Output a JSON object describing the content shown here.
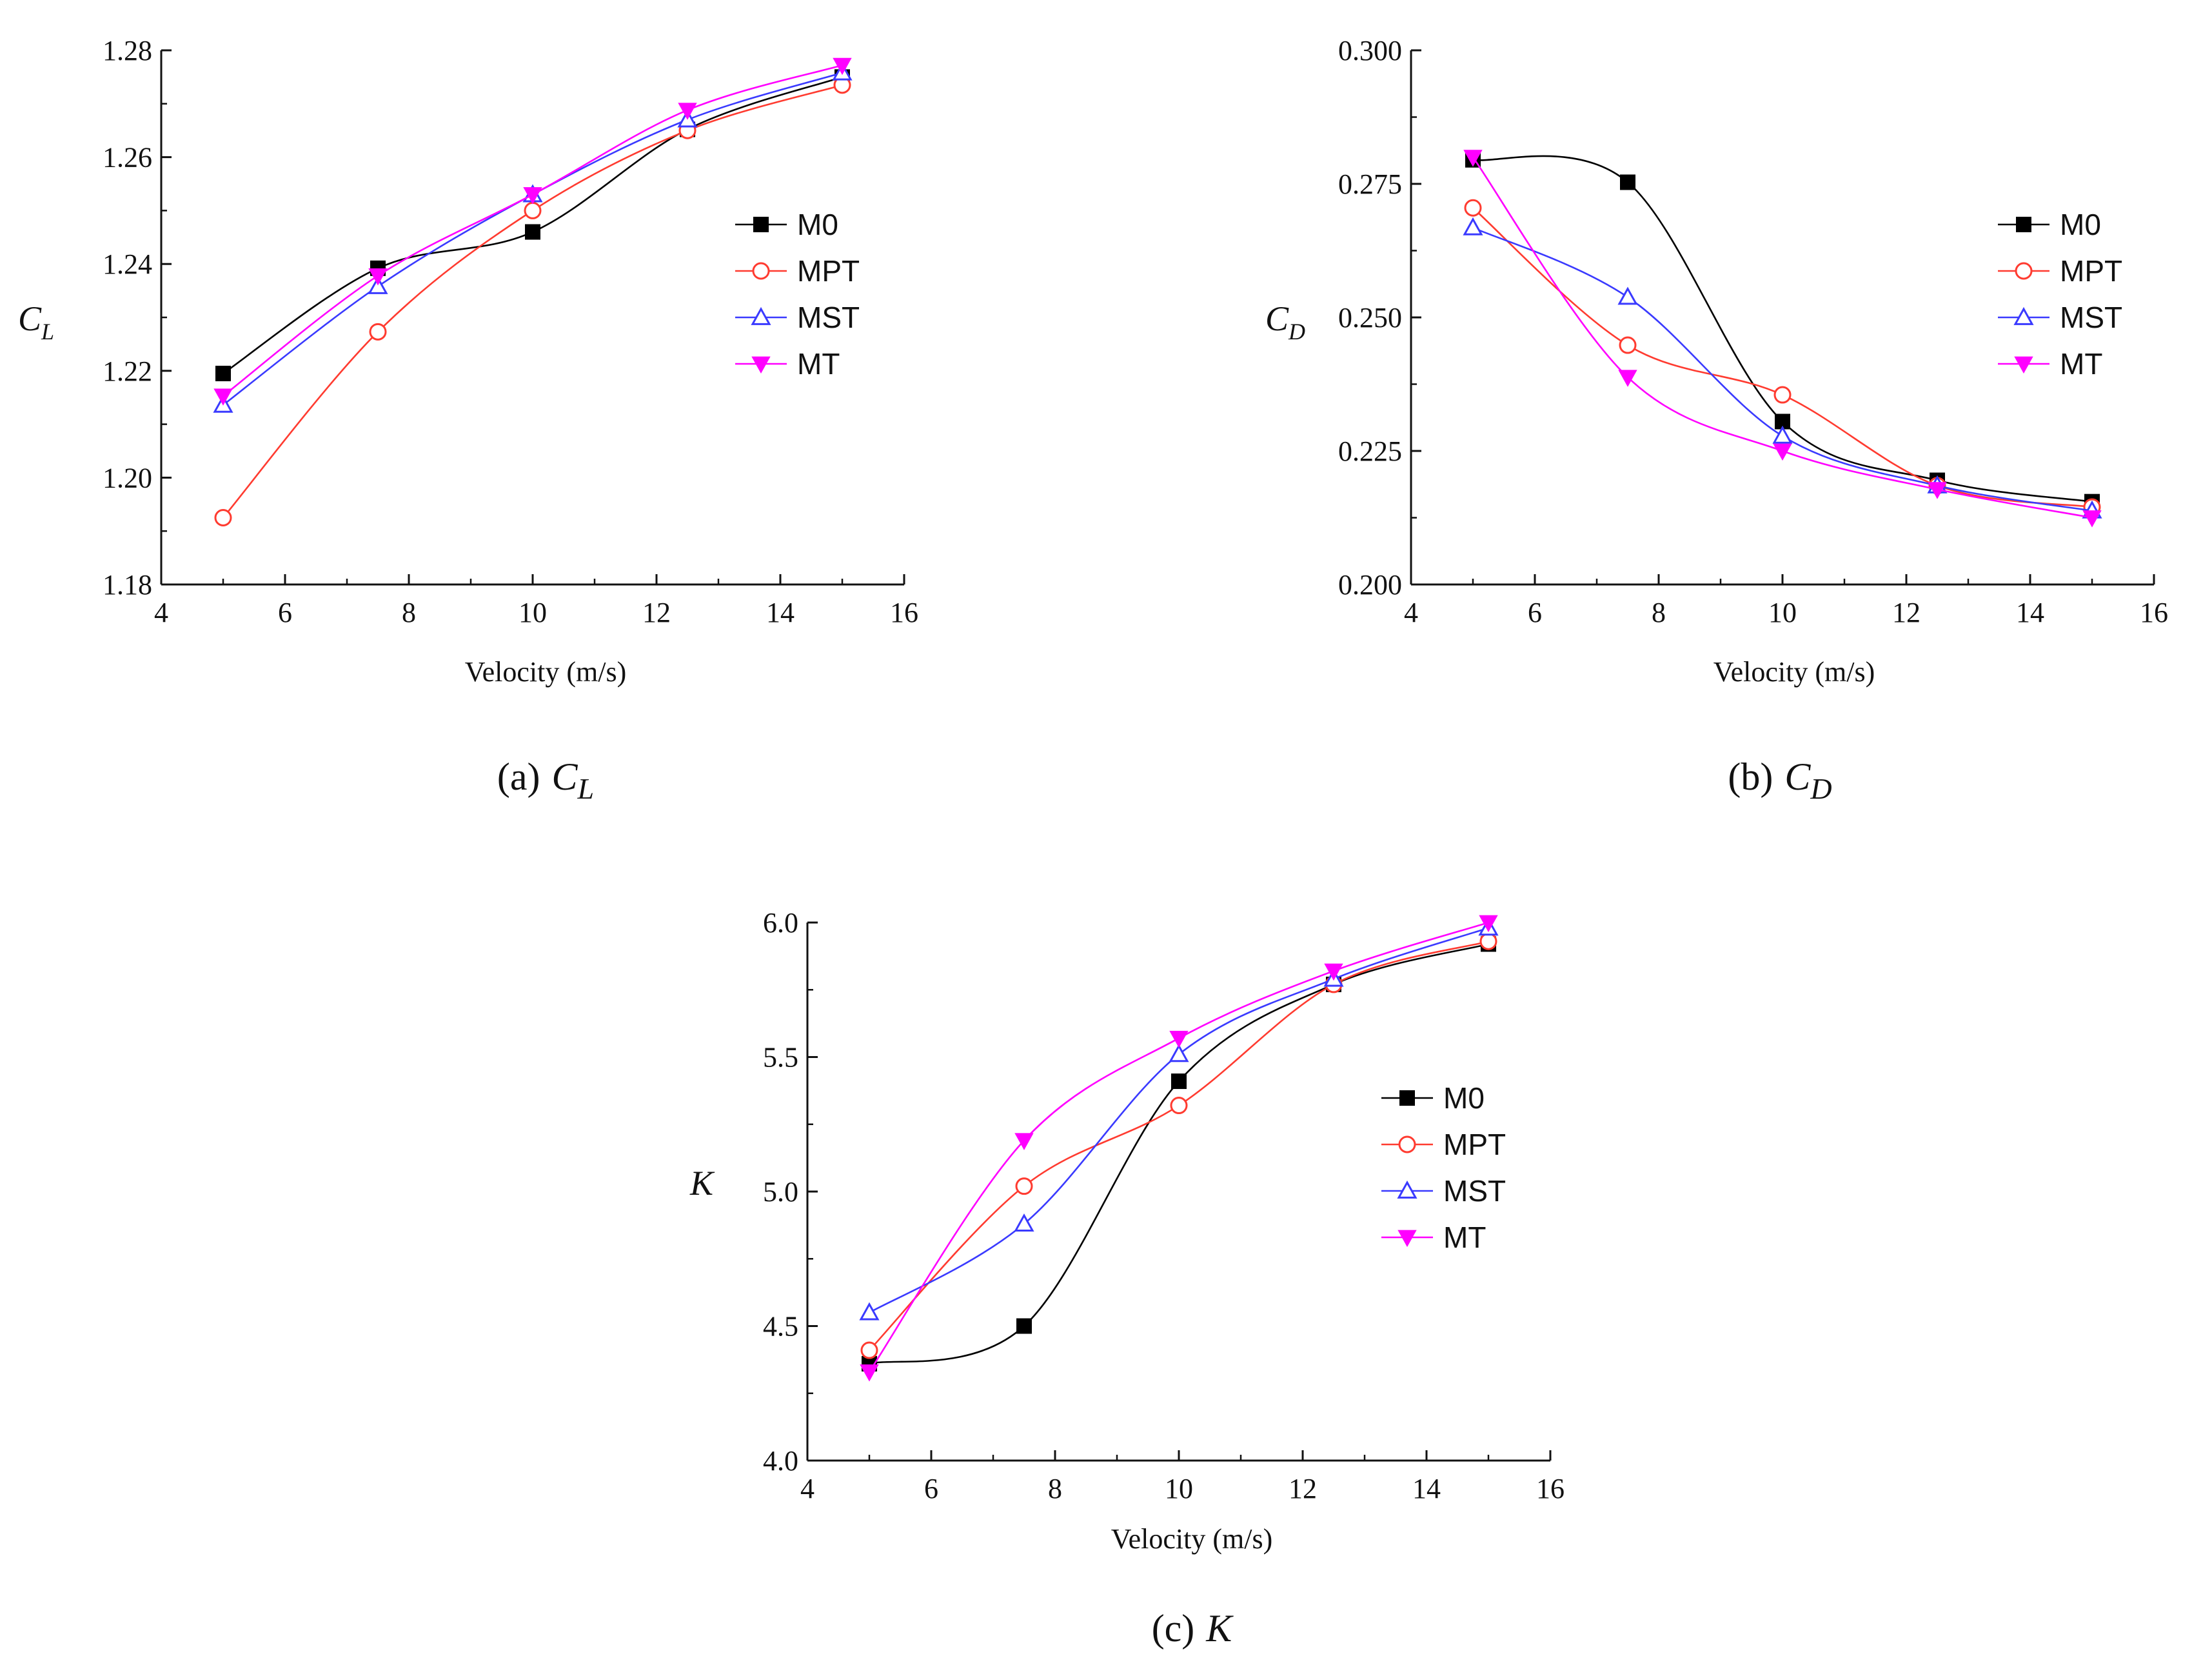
{
  "chart_data": [
    {
      "type": "line",
      "id": "a",
      "ylabel": "C",
      "ylabel_sub": "L",
      "xlabel": "Velocity (m/s)",
      "caption_prefix": "(a)",
      "caption_symbol": "C",
      "caption_sub": "L",
      "xlim": [
        4,
        16
      ],
      "ylim": [
        1.18,
        1.28
      ],
      "xticks": [
        4,
        6,
        8,
        10,
        12,
        14,
        16
      ],
      "xtick_labels": [
        "4",
        "6",
        "8",
        "10",
        "12",
        "14",
        "16"
      ],
      "yticks": [
        1.18,
        1.2,
        1.22,
        1.24,
        1.26,
        1.28
      ],
      "ytick_labels": [
        "1.18",
        "1.20",
        "1.22",
        "1.24",
        "1.26",
        "1.28"
      ],
      "legend_position": "center-right",
      "x": [
        5,
        7.5,
        10,
        12.5,
        15
      ],
      "series": [
        {
          "name": "M0",
          "values": [
            1.2195,
            1.2392,
            1.246,
            1.2652,
            1.275
          ]
        },
        {
          "name": "MPT",
          "values": [
            1.1925,
            1.2273,
            1.25,
            1.265,
            1.2735
          ]
        },
        {
          "name": "MST",
          "values": [
            1.2136,
            1.2358,
            1.253,
            1.267,
            1.2758
          ]
        },
        {
          "name": "MT",
          "values": [
            1.2153,
            1.2378,
            1.253,
            1.2688,
            1.2772
          ]
        }
      ]
    },
    {
      "type": "line",
      "id": "b",
      "ylabel": "C",
      "ylabel_sub": "D",
      "xlabel": "Velocity (m/s)",
      "caption_prefix": "(b)",
      "caption_symbol": "C",
      "caption_sub": "D",
      "xlim": [
        4,
        16
      ],
      "ylim": [
        0.2,
        0.3
      ],
      "xticks": [
        4,
        6,
        8,
        10,
        12,
        14,
        16
      ],
      "xtick_labels": [
        "4",
        "6",
        "8",
        "10",
        "12",
        "14",
        "16"
      ],
      "yticks": [
        0.2,
        0.225,
        0.25,
        0.275,
        0.3
      ],
      "ytick_labels": [
        "0.200",
        "0.225",
        "0.250",
        "0.275",
        "0.300"
      ],
      "legend_position": "center-right",
      "x": [
        5,
        7.5,
        10,
        12.5,
        15
      ],
      "series": [
        {
          "name": "M0",
          "values": [
            0.2795,
            0.2753,
            0.2305,
            0.2195,
            0.2155
          ]
        },
        {
          "name": "MPT",
          "values": [
            0.2705,
            0.2448,
            0.2355,
            0.2185,
            0.2145
          ]
        },
        {
          "name": "MST",
          "values": [
            0.2668,
            0.2538,
            0.2278,
            0.2185,
            0.2138
          ]
        },
        {
          "name": "MT",
          "values": [
            0.28,
            0.2388,
            0.225,
            0.2178,
            0.2125
          ]
        }
      ]
    },
    {
      "type": "line",
      "id": "c",
      "ylabel": "K",
      "ylabel_sub": "",
      "xlabel": "Velocity (m/s)",
      "caption_prefix": "(c)",
      "caption_symbol": "K",
      "caption_sub": "",
      "xlim": [
        4,
        16
      ],
      "ylim": [
        4.0,
        6.0
      ],
      "xticks": [
        4,
        6,
        8,
        10,
        12,
        14,
        16
      ],
      "xtick_labels": [
        "4",
        "6",
        "8",
        "10",
        "12",
        "14",
        "16"
      ],
      "yticks": [
        4.0,
        4.5,
        5.0,
        5.5,
        6.0
      ],
      "ytick_labels": [
        "4.0",
        "4.5",
        "5.0",
        "5.5",
        "6.0"
      ],
      "legend_position": "center-right",
      "x": [
        5,
        7.5,
        10,
        12.5,
        15
      ],
      "series": [
        {
          "name": "M0",
          "values": [
            4.36,
            4.5,
            5.41,
            5.77,
            5.92
          ]
        },
        {
          "name": "MPT",
          "values": [
            4.41,
            5.02,
            5.32,
            5.77,
            5.93
          ]
        },
        {
          "name": "MST",
          "values": [
            4.55,
            4.88,
            5.51,
            5.79,
            5.98
          ]
        },
        {
          "name": "MT",
          "values": [
            4.33,
            5.19,
            5.57,
            5.82,
            6.0
          ]
        }
      ]
    }
  ],
  "series_styles": [
    {
      "name": "M0",
      "color": "#000000",
      "marker": "square-filled"
    },
    {
      "name": "MPT",
      "color": "#ff3b30",
      "marker": "circle-open"
    },
    {
      "name": "MST",
      "color": "#3a3aff",
      "marker": "triangle-up-open"
    },
    {
      "name": "MT",
      "color": "#ff00ff",
      "marker": "triangle-down-filled"
    }
  ]
}
